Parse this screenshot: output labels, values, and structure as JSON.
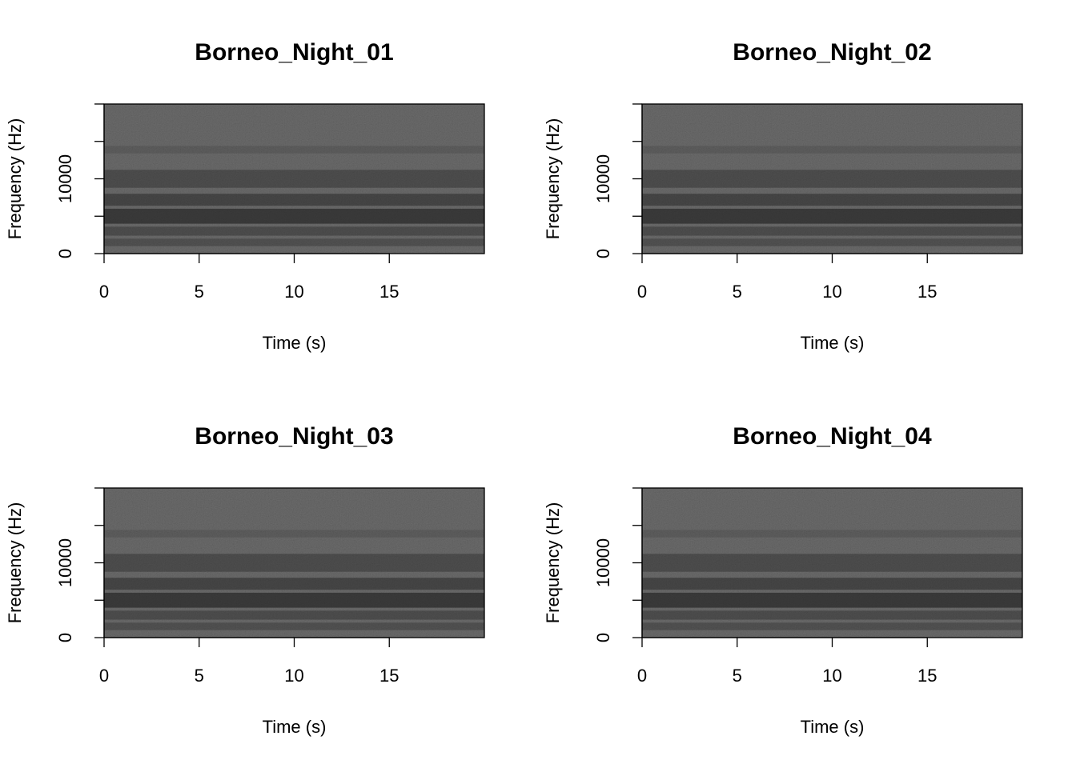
{
  "chart_data": [
    {
      "type": "spectrogram",
      "title": "Borneo_Night_01",
      "x_label": "Time (s)",
      "y_label": "Frequency (Hz)",
      "xlim": [
        0,
        20
      ],
      "ylim": [
        0,
        20000
      ],
      "xticks": [
        0,
        5,
        10,
        15
      ],
      "yticks": [
        0,
        10000
      ],
      "yminorticks": [
        5000,
        15000,
        20000
      ]
    },
    {
      "type": "spectrogram",
      "title": "Borneo_Night_02",
      "x_label": "Time (s)",
      "y_label": "Frequency (Hz)",
      "xlim": [
        0,
        20
      ],
      "ylim": [
        0,
        20000
      ],
      "xticks": [
        0,
        5,
        10,
        15
      ],
      "yticks": [
        0,
        10000
      ],
      "yminorticks": [
        5000,
        15000,
        20000
      ]
    },
    {
      "type": "spectrogram",
      "title": "Borneo_Night_03",
      "x_label": "Time (s)",
      "y_label": "Frequency (Hz)",
      "xlim": [
        0,
        20
      ],
      "ylim": [
        0,
        20000
      ],
      "xticks": [
        0,
        5,
        10,
        15
      ],
      "yticks": [
        0,
        10000
      ],
      "yminorticks": [
        5000,
        15000,
        20000
      ]
    },
    {
      "type": "spectrogram",
      "title": "Borneo_Night_04",
      "x_label": "Time (s)",
      "y_label": "Frequency (Hz)",
      "xlim": [
        0,
        20
      ],
      "ylim": [
        0,
        20000
      ],
      "xticks": [
        0,
        5,
        10,
        15
      ],
      "yticks": [
        0,
        10000
      ],
      "yminorticks": [
        5000,
        15000,
        20000
      ]
    }
  ]
}
